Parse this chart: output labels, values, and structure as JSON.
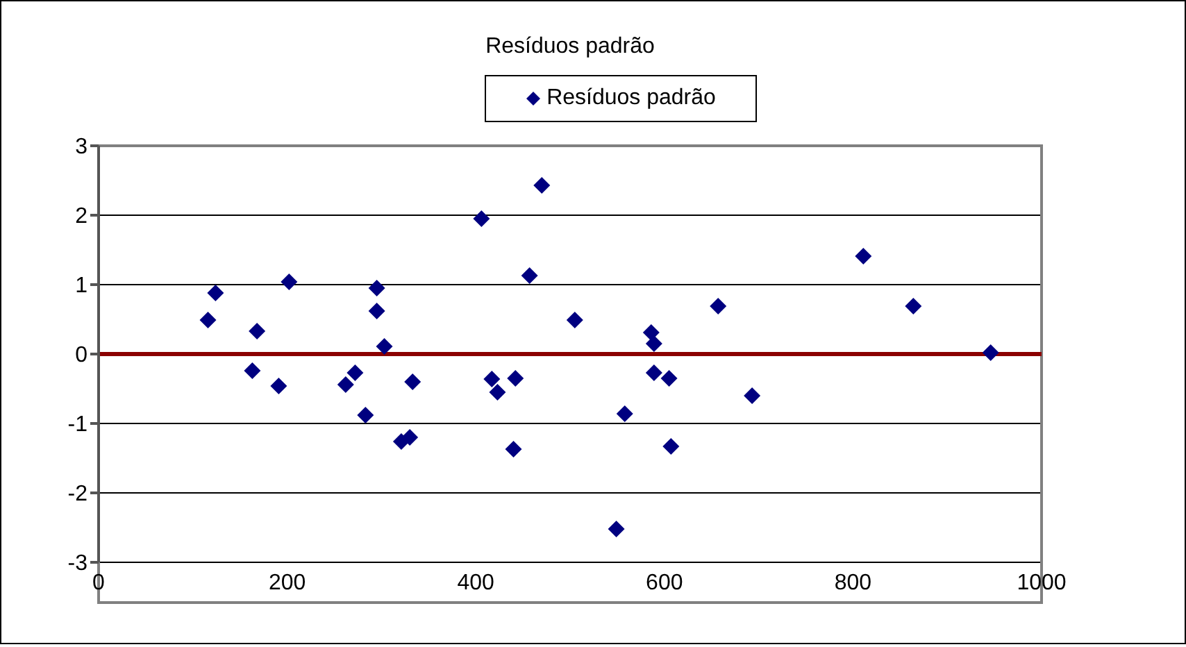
{
  "chart_data": {
    "type": "scatter",
    "title": "Resíduos padrão",
    "legend": "top",
    "grid": "y",
    "marker": "diamond",
    "xlim": [
      0,
      1000
    ],
    "xticks": [
      0,
      200,
      400,
      600,
      800,
      1000
    ],
    "ylim": [
      -3,
      3
    ],
    "yticks": [
      -3,
      -2,
      -1,
      0,
      1,
      2,
      3
    ],
    "ref_lines": [
      {
        "axis": "y",
        "value": 0,
        "color": "#8b0000"
      }
    ],
    "series": [
      {
        "name": "Resíduos padrão",
        "color": "#000080",
        "x": [
          116,
          124,
          163,
          168,
          191,
          202,
          262,
          272,
          283,
          295,
          295,
          303,
          321,
          330,
          333,
          406,
          417,
          423,
          440,
          442,
          457,
          470,
          505,
          549,
          558,
          586,
          589,
          589,
          605,
          607,
          657,
          693,
          811,
          864,
          946
        ],
        "values": [
          0.49,
          0.88,
          -0.24,
          0.33,
          -0.46,
          1.04,
          -0.44,
          -0.27,
          -0.88,
          0.95,
          0.62,
          0.11,
          -1.26,
          -1.2,
          -0.4,
          1.95,
          -0.36,
          -0.55,
          -1.37,
          -0.35,
          1.13,
          2.43,
          0.49,
          -2.52,
          -0.86,
          0.31,
          0.15,
          -0.27,
          -0.35,
          -1.33,
          0.69,
          -0.6,
          1.41,
          0.69,
          0.02
        ]
      }
    ]
  }
}
